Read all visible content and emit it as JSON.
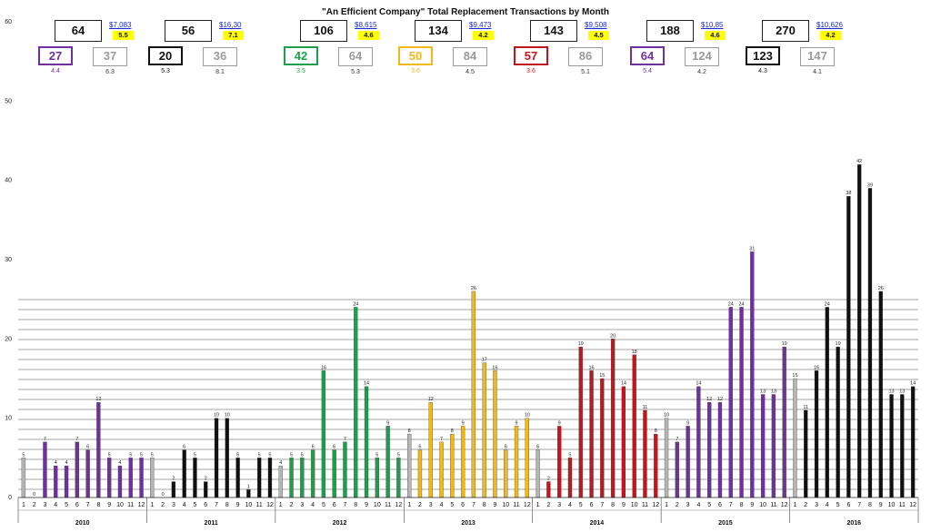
{
  "chart_data": {
    "type": "bar",
    "title": "\"An Efficient Company\"  Total Replacement Transactions by Month",
    "xlabel": "",
    "ylabel": "",
    "ylim": [
      0,
      60
    ],
    "yticks": [
      0,
      10,
      20,
      30,
      40,
      50,
      60
    ],
    "grid": true,
    "years": [
      {
        "label": "2010",
        "values": [
          5,
          0,
          7,
          4,
          4,
          7,
          6,
          12,
          5,
          4,
          5,
          5
        ],
        "colors": [
          "#b5b5b5",
          "#b5b5b5",
          "#7030a0",
          "#7030a0",
          "#7030a0",
          "#7030a0",
          "#7030a0",
          "#7030a0",
          "#7030a0",
          "#7030a0",
          "#7030a0",
          "#7030a0"
        ]
      },
      {
        "label": "2011",
        "values": [
          5,
          0,
          2,
          6,
          5,
          2,
          10,
          10,
          5,
          1,
          5,
          5
        ],
        "colors": [
          "#b5b5b5",
          "#111111",
          "#111111",
          "#111111",
          "#111111",
          "#111111",
          "#111111",
          "#111111",
          "#111111",
          "#111111",
          "#111111",
          "#111111"
        ]
      },
      {
        "label": "2012",
        "values": [
          4,
          5,
          5,
          6,
          16,
          6,
          7,
          24,
          14,
          5,
          9,
          5
        ],
        "colors": [
          "#b5b5b5",
          "#1e9e4a",
          "#1e9e4a",
          "#1e9e4a",
          "#1e9e4a",
          "#1e9e4a",
          "#1e9e4a",
          "#1e9e4a",
          "#1e9e4a",
          "#1e9e4a",
          "#1e9e4a",
          "#1e9e4a"
        ]
      },
      {
        "label": "2013",
        "values": [
          8,
          6,
          12,
          7,
          8,
          9,
          26,
          17,
          16,
          6,
          9,
          10
        ],
        "colors": [
          "#b5b5b5",
          "#f2b718",
          "#f2b718",
          "#f2b718",
          "#f2b718",
          "#f2b718",
          "#f2b718",
          "#f2b718",
          "#f2b718",
          "#f2b718",
          "#f2b718",
          "#f2b718"
        ]
      },
      {
        "label": "2014",
        "values": [
          6,
          2,
          9,
          5,
          19,
          16,
          15,
          20,
          14,
          18,
          11,
          8
        ],
        "colors": [
          "#b5b5b5",
          "#c0171e",
          "#c0171e",
          "#c0171e",
          "#c0171e",
          "#c0171e",
          "#c0171e",
          "#c0171e",
          "#c0171e",
          "#c0171e",
          "#c0171e",
          "#c0171e"
        ]
      },
      {
        "label": "2015",
        "values": [
          10,
          7,
          9,
          14,
          12,
          12,
          24,
          24,
          31,
          13,
          13,
          19
        ],
        "colors": [
          "#b5b5b5",
          "#7030a0",
          "#7030a0",
          "#7030a0",
          "#7030a0",
          "#7030a0",
          "#7030a0",
          "#7030a0",
          "#7030a0",
          "#7030a0",
          "#7030a0",
          "#7030a0"
        ]
      },
      {
        "label": "2016",
        "values": [
          15,
          11,
          16,
          24,
          19,
          38,
          42,
          39,
          26,
          13,
          13,
          14
        ],
        "colors": [
          "#b5b5b5",
          "#111111",
          "#111111",
          "#111111",
          "#111111",
          "#111111",
          "#111111",
          "#111111",
          "#111111",
          "#111111",
          "#111111",
          "#111111"
        ]
      }
    ],
    "months": [
      "1",
      "2",
      "3",
      "4",
      "5",
      "6",
      "7",
      "8",
      "9",
      "10",
      "11",
      "12"
    ],
    "annotations": [
      {
        "total": "64",
        "price": "$7,083",
        "ratio": "5.5",
        "sub1": "27",
        "sub1_ratio": "4.4",
        "sub1_color": "#7030a0",
        "sub2": "37",
        "sub2_ratio": "6.3"
      },
      {
        "total": "56",
        "price": "$16,30",
        "ratio": "7.1",
        "sub1": "20",
        "sub1_ratio": "5.3",
        "sub1_color": "#111111",
        "sub2": "36",
        "sub2_ratio": "8.1"
      },
      {
        "total": "106",
        "price": "$8,615",
        "ratio": "4.6",
        "sub1": "42",
        "sub1_ratio": "3.5",
        "sub1_color": "#1e9e4a",
        "sub2": "64",
        "sub2_ratio": "5.3"
      },
      {
        "total": "134",
        "price": "$9,473",
        "ratio": "4.2",
        "sub1": "50",
        "sub1_ratio": "3.6",
        "sub1_color": "#f2b718",
        "sub2": "84",
        "sub2_ratio": "4.5"
      },
      {
        "total": "143",
        "price": "$9,508",
        "ratio": "4.5",
        "sub1": "57",
        "sub1_ratio": "3.6",
        "sub1_color": "#c0171e",
        "sub2": "86",
        "sub2_ratio": "5.1"
      },
      {
        "total": "188",
        "price": "$10,85",
        "ratio": "4.6",
        "sub1": "64",
        "sub1_ratio": "5.4",
        "sub1_color": "#7030a0",
        "sub2": "124",
        "sub2_ratio": "4.2"
      },
      {
        "total": "270",
        "price": "$10,626",
        "ratio": "4.2",
        "sub1": "123",
        "sub1_ratio": "4.3",
        "sub1_color": "#111111",
        "sub2": "147",
        "sub2_ratio": "4.1"
      }
    ]
  }
}
